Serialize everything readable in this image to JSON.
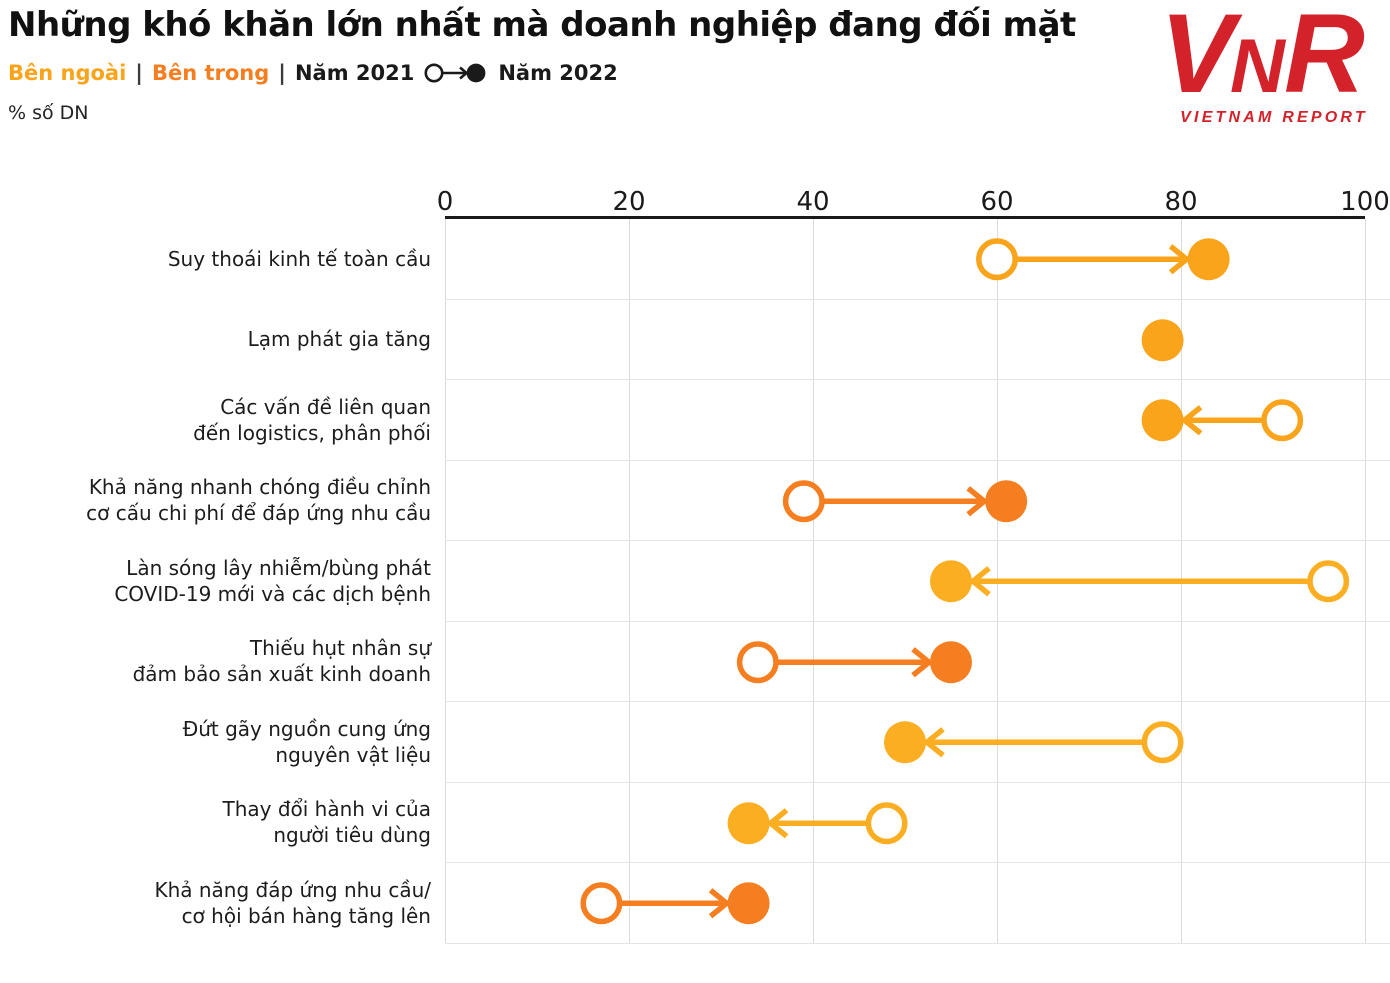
{
  "header": {
    "title": "Những khó khăn lớn nhất mà doanh nghiệp đang đối mặt",
    "legend": {
      "external_label": "Bên ngoài",
      "separator1": "|",
      "internal_label": "Bên trong",
      "separator2": "|",
      "year_2021_label": "Năm 2021",
      "year_2022_label": "Năm 2022"
    },
    "unit_label": "% số DN",
    "logo": {
      "v": "V",
      "n": "N",
      "r": "R",
      "subtitle": "VIETNAM REPORT",
      "color": "#D3222A"
    }
  },
  "colors": {
    "external": "#F9A41B",
    "external_light": "#FBAE22",
    "internal": "#F57E20",
    "axis_line": "#1A1A1A",
    "gridline": "#DBDBDB",
    "row_divider": "#E4E4E4",
    "legend_icon": "#1A1A1A"
  },
  "chart_data": {
    "type": "dumbbell-arrow",
    "title": "Những khó khăn lớn nhất mà doanh nghiệp đang đối mặt",
    "unit": "% số DN",
    "xlim": [
      0,
      100
    ],
    "x_ticks": [
      0,
      20,
      40,
      60,
      80,
      100
    ],
    "grid": true,
    "legend_groups": [
      "Bên ngoài",
      "Bên trong"
    ],
    "series_years": [
      "Năm 2021",
      "Năm 2022"
    ],
    "rows": [
      {
        "label": "Suy thoái kinh tế toàn cầu",
        "group": "Bên ngoài",
        "y2021": 60,
        "y2022": 83,
        "color": "#F9A41B"
      },
      {
        "label": "Lạm phát gia tăng",
        "group": "Bên ngoài",
        "y2021": null,
        "y2022": 78,
        "color": "#F9A41B"
      },
      {
        "label": "Các vấn đề liên quan\nđến logistics, phân phối",
        "group": "Bên ngoài",
        "y2021": 91,
        "y2022": 78,
        "color": "#F9A41B"
      },
      {
        "label": "Khả năng nhanh chóng điều chỉnh\ncơ cấu chi phí để đáp ứng nhu cầu",
        "group": "Bên trong",
        "y2021": 39,
        "y2022": 61,
        "color": "#F57E20"
      },
      {
        "label": "Làn sóng lây nhiễm/bùng phát\nCOVID-19 mới và các dịch bệnh",
        "group": "Bên ngoài",
        "y2021": 96,
        "y2022": 55,
        "color": "#FBAE22"
      },
      {
        "label": "Thiếu hụt nhân sự\nđảm bảo sản xuất kinh doanh",
        "group": "Bên trong",
        "y2021": 34,
        "y2022": 55,
        "color": "#F57E20"
      },
      {
        "label": "Đứt gãy nguồn cung ứng\nnguyên vật liệu",
        "group": "Bên ngoài",
        "y2021": 78,
        "y2022": 50,
        "color": "#FBAE22"
      },
      {
        "label": "Thay đổi hành vi của\nngười tiêu dùng",
        "group": "Bên ngoài",
        "y2021": 48,
        "y2022": 33,
        "color": "#FBAE22"
      },
      {
        "label": "Khả năng đáp ứng nhu cầu/\ncơ hội bán hàng tăng lên",
        "group": "Bên trong",
        "y2021": 17,
        "y2022": 33,
        "color": "#F57E20"
      }
    ]
  }
}
